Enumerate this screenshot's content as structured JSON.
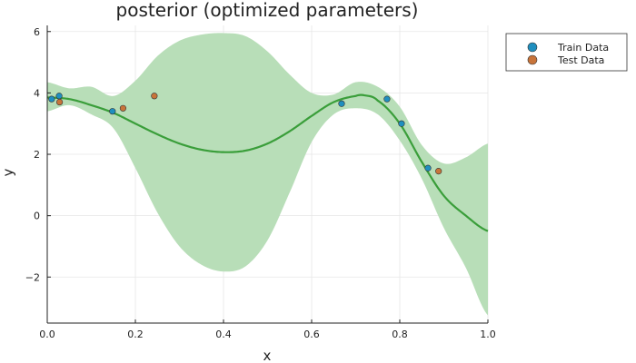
{
  "chart_data": {
    "type": "scatter",
    "title": "posterior (optimized parameters)",
    "xlabel": "x",
    "ylabel": "y",
    "xlim": [
      0,
      1
    ],
    "ylim": [
      -3.5,
      6.2
    ],
    "xticks": [
      0.0,
      0.2,
      0.4,
      0.6,
      0.8,
      1.0
    ],
    "xtick_labels": [
      "0.0",
      "0.2",
      "0.4",
      "0.6",
      "0.8",
      "1.0"
    ],
    "yticks": [
      -2,
      0,
      2,
      4,
      6
    ],
    "ytick_labels": [
      "−2",
      "0",
      "2",
      "4",
      "6"
    ],
    "grid": true,
    "legend_position": "top-right-outside",
    "series": [
      {
        "name": "Train Data",
        "kind": "scatter",
        "color": "#1f8fbf",
        "x": [
          0.01,
          0.027,
          0.148,
          0.668,
          0.771,
          0.804,
          0.864
        ],
        "y": [
          3.8,
          3.9,
          3.4,
          3.65,
          3.8,
          3.0,
          1.55
        ]
      },
      {
        "name": "Test Data",
        "kind": "scatter",
        "color": "#c8743a",
        "x": [
          0.028,
          0.172,
          0.243,
          0.888
        ],
        "y": [
          3.7,
          3.5,
          3.9,
          1.45
        ]
      },
      {
        "kind": "line",
        "color": "#3a9e3a",
        "x": [
          0.0,
          0.05,
          0.1,
          0.15,
          0.2,
          0.25,
          0.3,
          0.35,
          0.4,
          0.45,
          0.5,
          0.55,
          0.6,
          0.65,
          0.7,
          0.72,
          0.75,
          0.8,
          0.85,
          0.9,
          0.95,
          1.0
        ],
        "y": [
          3.85,
          3.8,
          3.6,
          3.35,
          3.0,
          2.65,
          2.35,
          2.15,
          2.07,
          2.12,
          2.35,
          2.75,
          3.25,
          3.7,
          3.9,
          3.92,
          3.75,
          3.0,
          1.75,
          0.65,
          0.0,
          -0.5
        ]
      },
      {
        "kind": "band",
        "color": "#b8deb8",
        "x": [
          0.0,
          0.05,
          0.1,
          0.15,
          0.2,
          0.25,
          0.3,
          0.35,
          0.4,
          0.45,
          0.5,
          0.55,
          0.6,
          0.65,
          0.7,
          0.75,
          0.8,
          0.85,
          0.9,
          0.95,
          1.0
        ],
        "upper": [
          4.35,
          4.15,
          4.2,
          3.9,
          4.4,
          5.2,
          5.7,
          5.9,
          5.95,
          5.85,
          5.35,
          4.6,
          4.0,
          3.95,
          4.35,
          4.2,
          3.55,
          2.3,
          1.7,
          1.9,
          2.35
        ],
        "lower": [
          3.4,
          3.6,
          3.3,
          2.85,
          1.55,
          0.1,
          -1.0,
          -1.6,
          -1.82,
          -1.65,
          -0.8,
          0.75,
          2.4,
          3.3,
          3.5,
          3.3,
          2.45,
          1.2,
          -0.4,
          -1.7,
          -3.25
        ]
      }
    ]
  }
}
